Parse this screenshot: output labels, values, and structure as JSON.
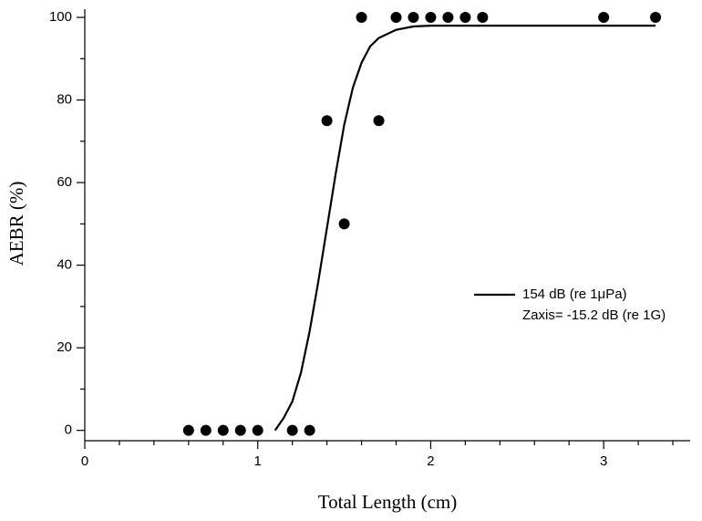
{
  "chart_data": {
    "type": "scatter",
    "x_label": "Total Length (cm)",
    "y_label": "AEBR (%)",
    "xlim": [
      0,
      3.5
    ],
    "ylim": [
      -2.5,
      102
    ],
    "xticks": [
      0,
      1,
      2,
      3
    ],
    "yticks": [
      0,
      20,
      40,
      60,
      80,
      100
    ],
    "xminor_ticks": [
      0.2,
      0.4,
      0.6,
      0.8,
      1.2,
      1.4,
      1.6,
      1.8,
      2.2,
      2.4,
      2.6,
      2.8,
      3.2,
      3.4
    ],
    "yminor_ticks": [
      10,
      30,
      50,
      70,
      90
    ],
    "series": [
      {
        "type": "scatter",
        "color": "#000000",
        "x": [
          0.6,
          0.7,
          0.8,
          0.9,
          1.0,
          1.2,
          1.3,
          1.4,
          1.5,
          1.6,
          1.7,
          1.8,
          1.9,
          2.0,
          2.1,
          2.2,
          2.3,
          3.0,
          3.3
        ],
        "values": [
          0,
          0,
          0,
          0,
          0,
          0,
          0,
          75,
          50,
          100,
          75,
          100,
          100,
          100,
          100,
          100,
          100,
          100,
          100
        ]
      },
      {
        "type": "line",
        "color": "#000000",
        "name": [
          "154 dB (re 1μPa)",
          "Zaxis= -15.2 dB (re 1G)"
        ],
        "x": [
          1.1,
          1.15,
          1.2,
          1.25,
          1.3,
          1.35,
          1.4,
          1.45,
          1.5,
          1.55,
          1.6,
          1.65,
          1.7,
          1.8,
          1.9,
          2.0,
          2.5,
          3.0,
          3.3
        ],
        "values": [
          0,
          3,
          7,
          14,
          24,
          36,
          49,
          62,
          74,
          83,
          89,
          93,
          95,
          97,
          97.8,
          98,
          98,
          98,
          98
        ]
      }
    ],
    "legend": "right"
  }
}
